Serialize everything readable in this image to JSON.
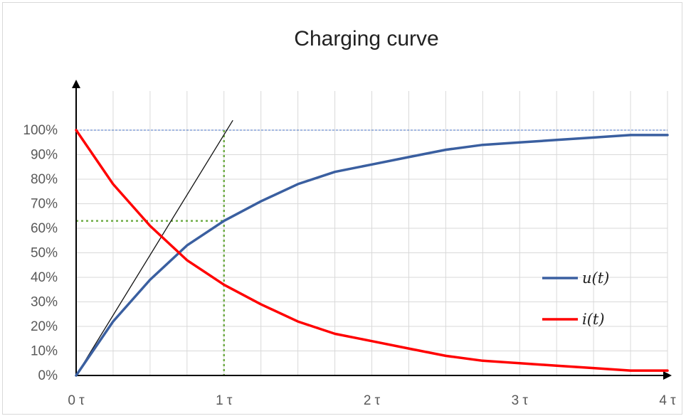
{
  "chart_data": {
    "type": "line",
    "title": "Charging curve",
    "x_ticks": [
      "0 τ",
      "1 τ",
      "2 τ",
      "3 τ",
      "4 τ"
    ],
    "y_ticks": [
      "0%",
      "10%",
      "20%",
      "30%",
      "40%",
      "50%",
      "60%",
      "70%",
      "80%",
      "90%",
      "100%"
    ],
    "xlim": [
      0,
      4
    ],
    "ylim": [
      0,
      100
    ],
    "grid": true,
    "legend_position": "right",
    "x": [
      0,
      0.25,
      0.5,
      0.75,
      1,
      1.25,
      1.5,
      1.75,
      2,
      2.25,
      2.5,
      2.75,
      3,
      3.25,
      3.5,
      3.75,
      4
    ],
    "series": [
      {
        "name": "u(t)",
        "color": "#3a5fa0",
        "values": [
          0,
          22,
          39,
          53,
          63,
          71,
          78,
          83,
          86,
          89,
          92,
          94,
          95,
          96,
          97,
          98,
          98
        ]
      },
      {
        "name": "i(t)",
        "color": "#ff0000",
        "values": [
          100,
          78,
          61,
          47,
          37,
          29,
          22,
          17,
          14,
          11,
          8,
          6,
          5,
          4,
          3,
          2,
          2
        ]
      }
    ],
    "annotations": {
      "tangent": {
        "from": [
          0,
          0
        ],
        "to": [
          1.06,
          104
        ],
        "color": "#111111"
      },
      "ref_100": {
        "y": 100,
        "color": "#4472c4"
      },
      "ref_63": {
        "x": 1,
        "y": 63,
        "color": "#70ad47"
      }
    }
  }
}
